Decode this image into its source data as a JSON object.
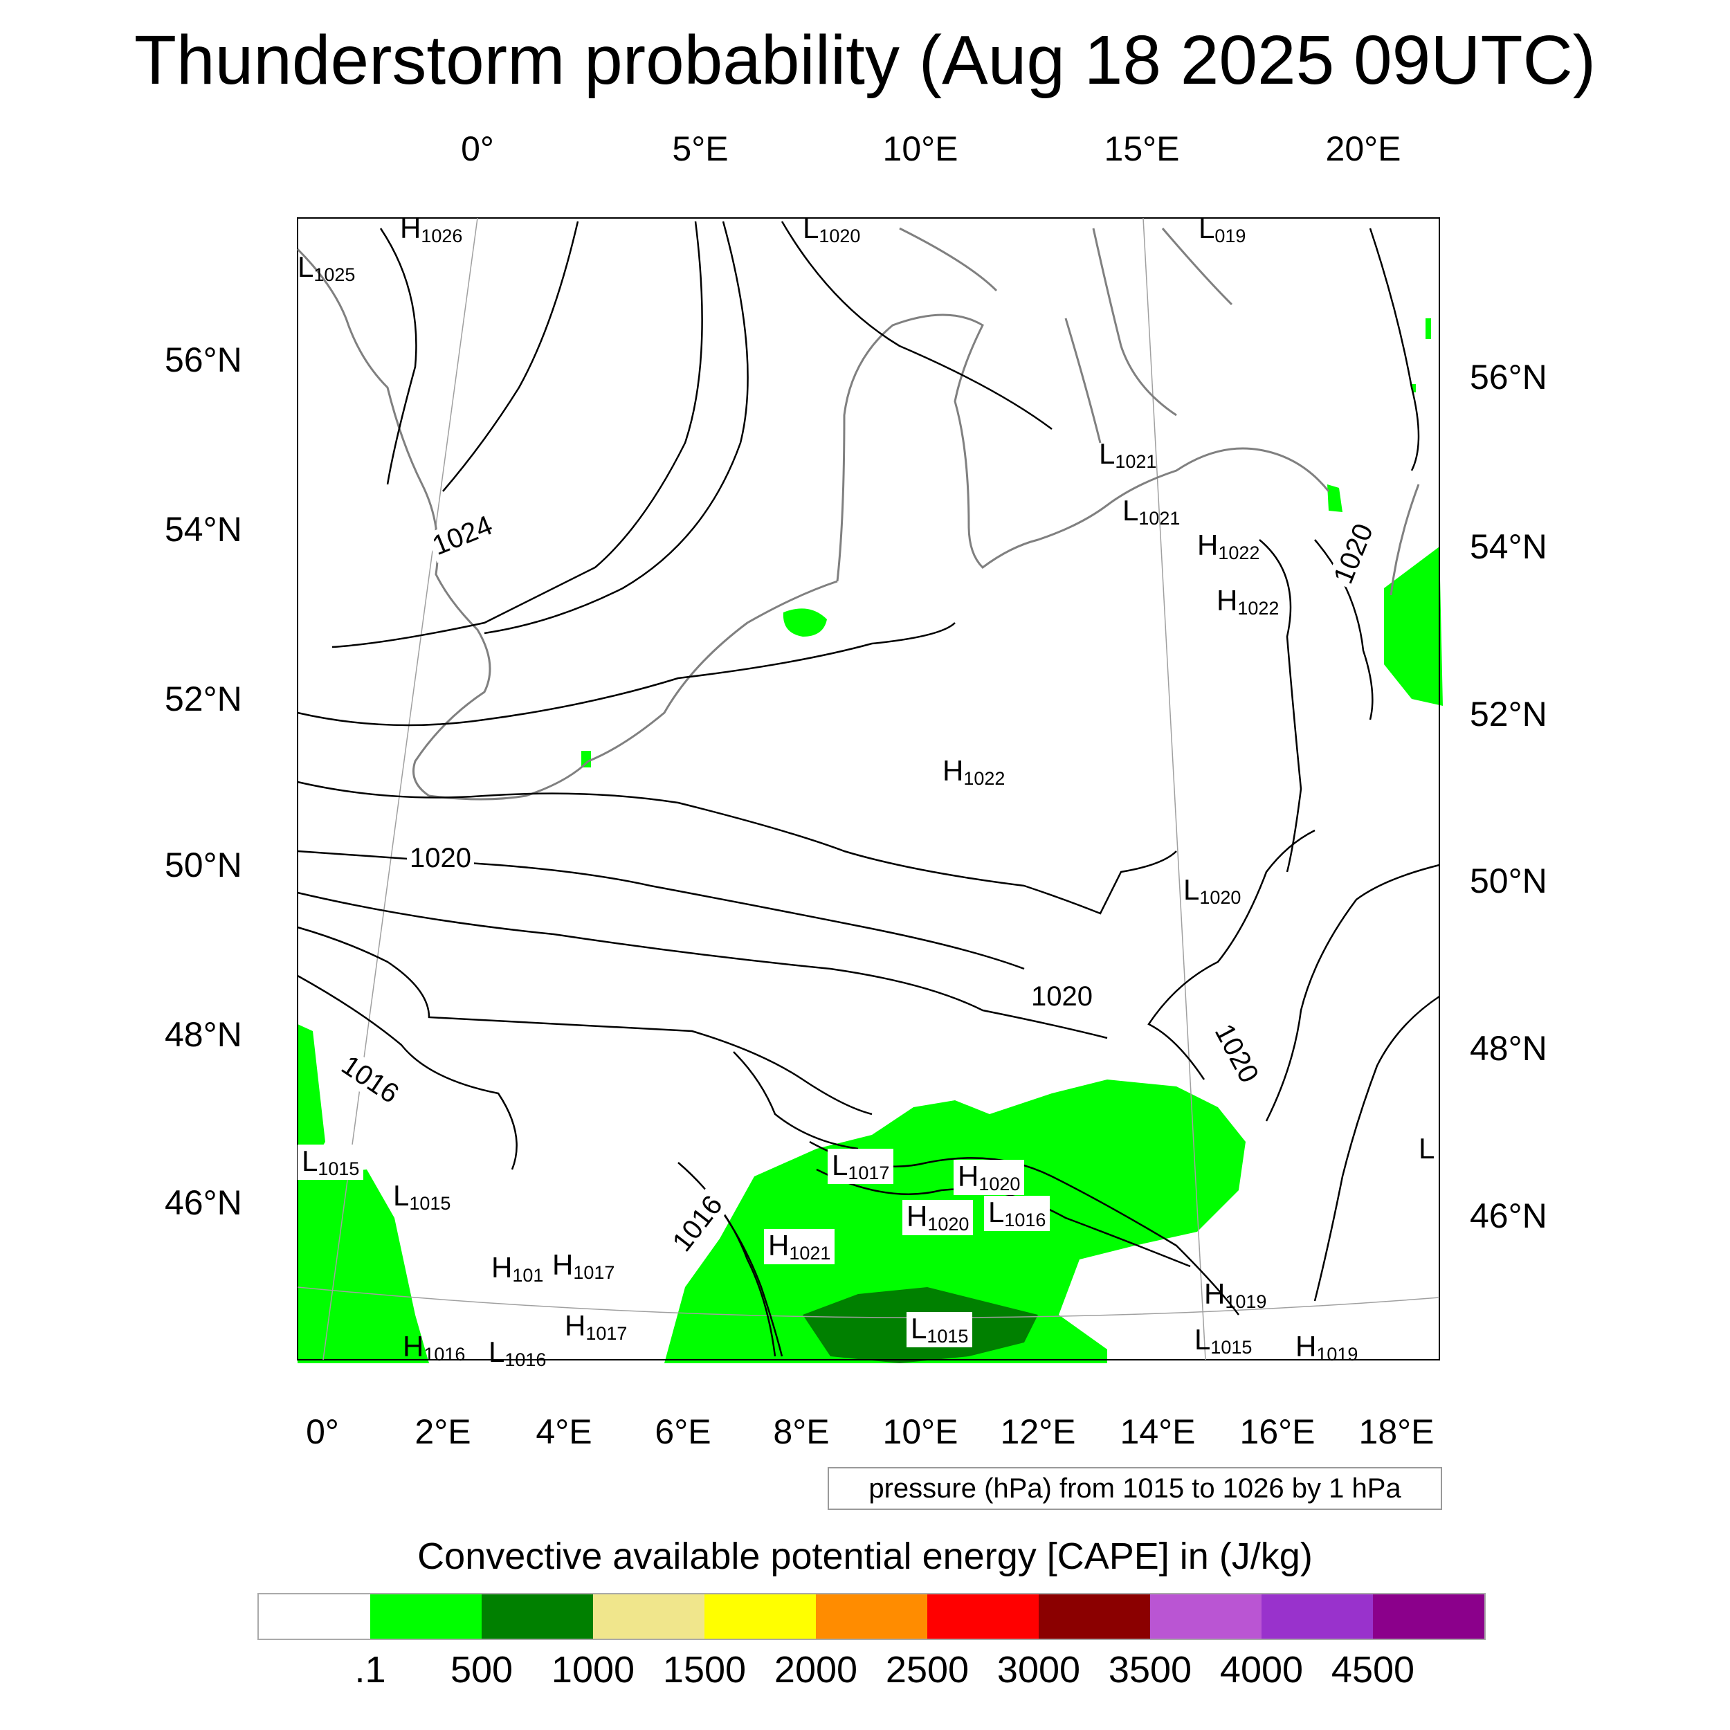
{
  "title": "Thunderstorm probability (Aug 18 2025 09UTC)",
  "axes": {
    "top_lon_labels": [
      "0°",
      "5°E",
      "10°E",
      "15°E",
      "20°E"
    ],
    "bottom_lon_labels": [
      "0°",
      "2°E",
      "4°E",
      "6°E",
      "8°E",
      "10°E",
      "12°E",
      "14°E",
      "16°E",
      "18°E"
    ],
    "left_lat_labels": [
      "56°N",
      "54°N",
      "52°N",
      "50°N",
      "48°N",
      "46°N"
    ],
    "right_lat_labels": [
      "56°N",
      "54°N",
      "52°N",
      "50°N",
      "48°N",
      "46°N"
    ]
  },
  "pressure_centers": [
    {
      "type": "H",
      "value": "1026"
    },
    {
      "type": "L",
      "value": "1025"
    },
    {
      "type": "L",
      "value": "1020"
    },
    {
      "type": "L",
      "value": "019"
    },
    {
      "type": "L",
      "value": "1021"
    },
    {
      "type": "L",
      "value": "1021"
    },
    {
      "type": "H",
      "value": "1022"
    },
    {
      "type": "H",
      "value": "1022"
    },
    {
      "type": "H",
      "value": "1022"
    },
    {
      "type": "L",
      "value": "1020"
    },
    {
      "type": "L",
      "value": "1015"
    },
    {
      "type": "L",
      "value": "1015"
    },
    {
      "type": "L",
      "value": "1017"
    },
    {
      "type": "H",
      "value": "1020"
    },
    {
      "type": "H",
      "value": "1020"
    },
    {
      "type": "L",
      "value": "1016"
    },
    {
      "type": "H",
      "value": "1021"
    },
    {
      "type": "H",
      "value": "101"
    },
    {
      "type": "H",
      "value": "1017"
    },
    {
      "type": "H",
      "value": "1017"
    },
    {
      "type": "H",
      "value": "1016"
    },
    {
      "type": "L",
      "value": "1016"
    },
    {
      "type": "L",
      "value": "1015"
    },
    {
      "type": "H",
      "value": "1019"
    },
    {
      "type": "L",
      "value": "1015"
    },
    {
      "type": "H",
      "value": "1019"
    },
    {
      "type": "L",
      "value": ""
    }
  ],
  "contour_labels": [
    "1024",
    "1020",
    "1020",
    "1020",
    "1020",
    "1016",
    "1016"
  ],
  "info_box": "pressure (hPa) from 1015 to 1026 by 1 hPa",
  "legend": {
    "title": "Convective available potential energy [CAPE] in (J/kg)",
    "colors": [
      "#ffffff",
      "#00ff00",
      "#008000",
      "#f0e68c",
      "#ffff00",
      "#ff8c00",
      "#ff0000",
      "#8b0000",
      "#ba55d3",
      "#9932cc",
      "#8b008b"
    ],
    "labels": [
      ".1",
      "500",
      "1000",
      "1500",
      "2000",
      "2500",
      "3000",
      "3500",
      "4000",
      "4500"
    ]
  },
  "map_colors": {
    "cape_low": "#00ff00",
    "cape_mid": "#008000",
    "coast": "#808080",
    "isobar": "#000000"
  }
}
